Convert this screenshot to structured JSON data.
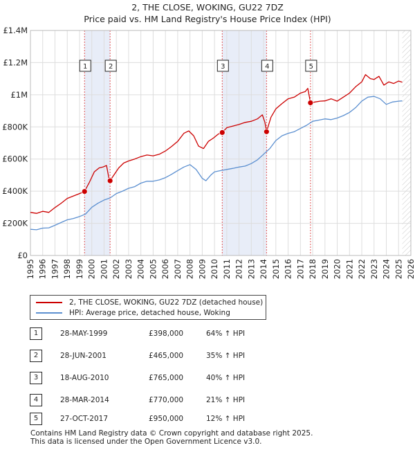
{
  "title": {
    "line1": "2, THE CLOSE, WOKING, GU22 7DZ",
    "line2": "Price paid vs. HM Land Registry's House Price Index (HPI)"
  },
  "colors": {
    "price_line": "#cc0000",
    "hpi_line": "#5b8fd0",
    "shade": "#e8edf8",
    "grid": "#dddddd",
    "vline": "#e05555"
  },
  "chart_data": {
    "type": "line",
    "title": "2, THE CLOSE, WOKING, GU22 7DZ — Price paid vs. HM Land Registry's House Price Index (HPI)",
    "xlim": [
      1995,
      2026
    ],
    "ylim": [
      0,
      1400000
    ],
    "y_ticks": [
      {
        "value": 0,
        "label": "£0"
      },
      {
        "value": 200000,
        "label": "£200K"
      },
      {
        "value": 400000,
        "label": "£400K"
      },
      {
        "value": 600000,
        "label": "£600K"
      },
      {
        "value": 800000,
        "label": "£800K"
      },
      {
        "value": 1000000,
        "label": "£1M"
      },
      {
        "value": 1200000,
        "label": "£1.2M"
      },
      {
        "value": 1400000,
        "label": "£1.4M"
      }
    ],
    "x_ticks": [
      "1995",
      "1996",
      "1997",
      "1998",
      "1999",
      "2000",
      "2001",
      "2002",
      "2003",
      "2004",
      "2005",
      "2006",
      "2007",
      "2008",
      "2009",
      "2010",
      "2011",
      "2012",
      "2013",
      "2014",
      "2015",
      "2016",
      "2017",
      "2018",
      "2019",
      "2020",
      "2021",
      "2022",
      "2023",
      "2024",
      "2025",
      "2026"
    ],
    "shaded_ranges": [
      [
        1999.41,
        2001.49
      ],
      [
        2010.63,
        2014.24
      ]
    ],
    "forecast_start": 2025.3,
    "series": [
      {
        "name": "2, THE CLOSE, WOKING, GU22 7DZ (detached house)",
        "x": [
          1995.0,
          1995.5,
          1996.0,
          1996.5,
          1997.0,
          1997.5,
          1998.0,
          1998.5,
          1999.0,
          1999.41,
          1999.8,
          2000.2,
          2000.6,
          2000.9,
          2001.2,
          2001.4,
          2001.49,
          2001.8,
          2002.2,
          2002.6,
          2003.0,
          2003.5,
          2004.0,
          2004.5,
          2005.0,
          2005.5,
          2006.0,
          2006.5,
          2007.0,
          2007.5,
          2007.9,
          2008.3,
          2008.7,
          2009.1,
          2009.5,
          2009.9,
          2010.3,
          2010.63,
          2011.0,
          2011.5,
          2012.0,
          2012.5,
          2013.0,
          2013.5,
          2013.9,
          2014.1,
          2014.24,
          2014.6,
          2015.0,
          2015.5,
          2016.0,
          2016.5,
          2017.0,
          2017.4,
          2017.6,
          2017.82,
          2018.2,
          2018.6,
          2019.0,
          2019.5,
          2020.0,
          2020.5,
          2021.0,
          2021.5,
          2022.0,
          2022.3,
          2022.7,
          2023.0,
          2023.4,
          2023.8,
          2024.2,
          2024.6,
          2025.0,
          2025.3
        ],
        "values": [
          268000,
          262000,
          275000,
          268000,
          298000,
          325000,
          355000,
          370000,
          385000,
          398000,
          455000,
          520000,
          545000,
          550000,
          560000,
          480000,
          465000,
          500000,
          545000,
          575000,
          588000,
          600000,
          615000,
          625000,
          620000,
          630000,
          650000,
          678000,
          710000,
          760000,
          775000,
          745000,
          680000,
          665000,
          710000,
          730000,
          755000,
          765000,
          795000,
          805000,
          815000,
          828000,
          835000,
          850000,
          875000,
          830000,
          770000,
          860000,
          912000,
          945000,
          975000,
          985000,
          1010000,
          1020000,
          1040000,
          950000,
          955000,
          960000,
          962000,
          975000,
          960000,
          985000,
          1010000,
          1050000,
          1080000,
          1125000,
          1100000,
          1095000,
          1115000,
          1060000,
          1080000,
          1070000,
          1085000,
          1078000
        ]
      },
      {
        "name": "HPI: Average price, detached house, Woking",
        "x": [
          1995.0,
          1995.5,
          1996.0,
          1996.5,
          1997.0,
          1997.5,
          1998.0,
          1998.5,
          1999.0,
          1999.5,
          2000.0,
          2000.5,
          2001.0,
          2001.5,
          2002.0,
          2002.5,
          2003.0,
          2003.5,
          2004.0,
          2004.5,
          2005.0,
          2005.5,
          2006.0,
          2006.5,
          2007.0,
          2007.5,
          2008.0,
          2008.5,
          2009.0,
          2009.3,
          2009.7,
          2010.0,
          2010.5,
          2011.0,
          2011.5,
          2012.0,
          2012.5,
          2013.0,
          2013.5,
          2014.0,
          2014.5,
          2015.0,
          2015.5,
          2016.0,
          2016.5,
          2017.0,
          2017.5,
          2018.0,
          2018.5,
          2019.0,
          2019.5,
          2020.0,
          2020.5,
          2021.0,
          2021.5,
          2022.0,
          2022.5,
          2023.0,
          2023.5,
          2024.0,
          2024.5,
          2025.0,
          2025.3
        ],
        "values": [
          163000,
          160000,
          170000,
          172000,
          188000,
          205000,
          222000,
          230000,
          242000,
          258000,
          300000,
          325000,
          345000,
          358000,
          385000,
          400000,
          418000,
          428000,
          450000,
          462000,
          462000,
          470000,
          484000,
          505000,
          528000,
          550000,
          565000,
          535000,
          480000,
          465000,
          500000,
          520000,
          528000,
          535000,
          542000,
          550000,
          556000,
          572000,
          595000,
          630000,
          665000,
          715000,
          745000,
          760000,
          770000,
          790000,
          810000,
          835000,
          842000,
          850000,
          845000,
          855000,
          870000,
          890000,
          920000,
          960000,
          985000,
          990000,
          975000,
          940000,
          955000,
          960000,
          962000
        ]
      }
    ],
    "sales": [
      {
        "num": "1",
        "x": 1999.41,
        "price": 398000
      },
      {
        "num": "2",
        "x": 2001.49,
        "price": 465000
      },
      {
        "num": "3",
        "x": 2010.63,
        "price": 765000
      },
      {
        "num": "4",
        "x": 2014.24,
        "price": 770000
      },
      {
        "num": "5",
        "x": 2017.82,
        "price": 950000
      }
    ]
  },
  "legend": {
    "price_label": "2, THE CLOSE, WOKING, GU22 7DZ (detached house)",
    "hpi_label": "HPI: Average price, detached house, Woking"
  },
  "sales_table": [
    {
      "num": "1",
      "date": "28-MAY-1999",
      "price": "£398,000",
      "hpi": "64% ↑ HPI"
    },
    {
      "num": "2",
      "date": "28-JUN-2001",
      "price": "£465,000",
      "hpi": "35% ↑ HPI"
    },
    {
      "num": "3",
      "date": "18-AUG-2010",
      "price": "£765,000",
      "hpi": "40% ↑ HPI"
    },
    {
      "num": "4",
      "date": "28-MAR-2014",
      "price": "£770,000",
      "hpi": "21% ↑ HPI"
    },
    {
      "num": "5",
      "date": "27-OCT-2017",
      "price": "£950,000",
      "hpi": "12% ↑ HPI"
    }
  ],
  "footer": {
    "line1": "Contains HM Land Registry data © Crown copyright and database right 2025.",
    "line2": "This data is licensed under the Open Government Licence v3.0."
  }
}
